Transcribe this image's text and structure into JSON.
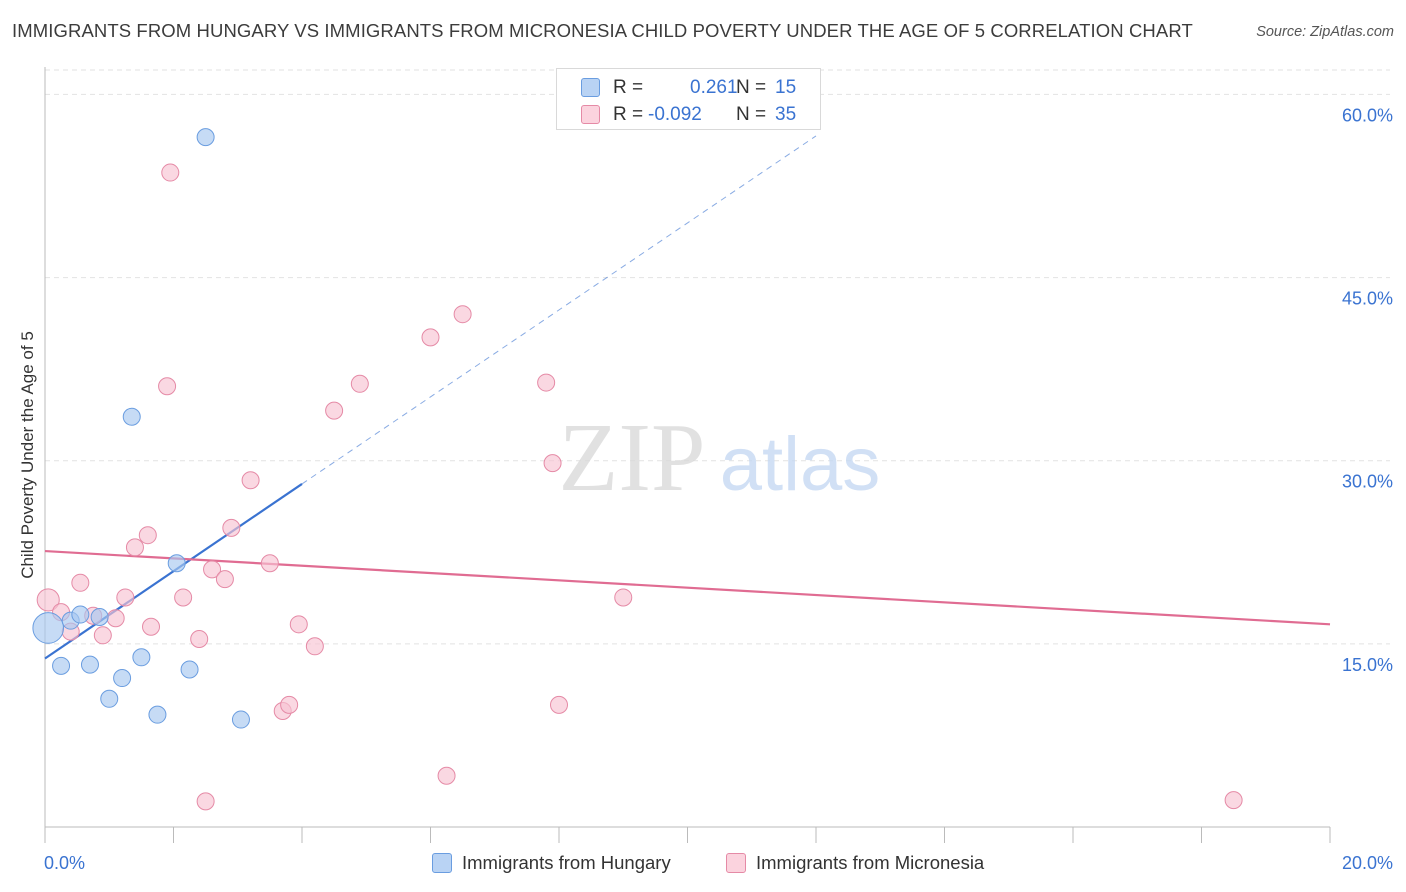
{
  "title": "IMMIGRANTS FROM HUNGARY VS IMMIGRANTS FROM MICRONESIA CHILD POVERTY UNDER THE AGE OF 5 CORRELATION CHART",
  "source": "Source: ZipAtlas.com",
  "watermark": {
    "zip": "ZIP",
    "atlas": "atlas"
  },
  "legend": {
    "rows": [
      {
        "r_label": "R =",
        "r_value": "0.261",
        "n_label": "N =",
        "n_value": "15",
        "color": "#a8c8f0",
        "border": "#6a9de0"
      },
      {
        "r_label": "R =",
        "r_value": "-0.092",
        "n_label": "N =",
        "n_value": "35",
        "color": "#f7c3d2",
        "border": "#e58aa6"
      }
    ]
  },
  "chart_data": {
    "type": "scatter",
    "title": "IMMIGRANTS FROM HUNGARY VS IMMIGRANTS FROM MICRONESIA CHILD POVERTY UNDER THE AGE OF 5 CORRELATION CHART",
    "xlabel": "",
    "ylabel": "Child Poverty Under the Age of 5",
    "xlim": [
      0,
      20
    ],
    "ylim": [
      0,
      62
    ],
    "x_tick_labels": [
      "0.0%",
      "20.0%"
    ],
    "y_ticks": [
      15,
      30,
      45,
      60
    ],
    "y_tick_labels": [
      "15.0%",
      "30.0%",
      "45.0%",
      "60.0%"
    ],
    "grid": true,
    "legend_position": "top-center",
    "series": [
      {
        "name": "Immigrants from Hungary",
        "color": "#a8c8f0",
        "edge": "#6a9de0",
        "line_color": "#3a73d1",
        "points": [
          [
            0.05,
            16.3,
            1.8
          ],
          [
            0.25,
            13.2,
            1
          ],
          [
            0.4,
            16.9,
            1
          ],
          [
            0.55,
            17.4,
            1
          ],
          [
            0.7,
            13.3,
            1
          ],
          [
            0.85,
            17.2,
            1
          ],
          [
            1.0,
            10.5,
            1
          ],
          [
            1.2,
            12.2,
            1
          ],
          [
            1.35,
            33.6,
            1
          ],
          [
            1.5,
            13.9,
            1
          ],
          [
            1.75,
            9.2,
            1
          ],
          [
            2.05,
            21.6,
            1
          ],
          [
            2.25,
            12.9,
            1
          ],
          [
            2.5,
            56.5,
            1
          ],
          [
            3.05,
            8.8,
            1
          ]
        ],
        "trend": {
          "x0": 0.0,
          "y0": 13.8,
          "x1": 4.0,
          "y1": 28.1,
          "ext_x1": 12.0,
          "ext_y1": 56.6
        }
      },
      {
        "name": "Immigrants from Micronesia",
        "color": "#f7c3d2",
        "edge": "#e58aa6",
        "line_color": "#e06c92",
        "points": [
          [
            0.05,
            18.6,
            1.3
          ],
          [
            0.25,
            17.6,
            1
          ],
          [
            0.4,
            16.0,
            1
          ],
          [
            0.55,
            20.0,
            1
          ],
          [
            0.75,
            17.3,
            1
          ],
          [
            0.9,
            15.7,
            1
          ],
          [
            1.1,
            17.1,
            1
          ],
          [
            1.25,
            18.8,
            1
          ],
          [
            1.4,
            22.9,
            1
          ],
          [
            1.6,
            23.9,
            1
          ],
          [
            1.65,
            16.4,
            1
          ],
          [
            1.9,
            36.1,
            1
          ],
          [
            1.95,
            53.6,
            1
          ],
          [
            2.15,
            18.8,
            1
          ],
          [
            2.4,
            15.4,
            1
          ],
          [
            2.5,
            2.1,
            1
          ],
          [
            2.6,
            21.1,
            1
          ],
          [
            2.8,
            20.3,
            1
          ],
          [
            2.9,
            24.5,
            1
          ],
          [
            3.2,
            28.4,
            1
          ],
          [
            3.5,
            21.6,
            1
          ],
          [
            3.7,
            9.5,
            1
          ],
          [
            3.8,
            10.0,
            1
          ],
          [
            3.95,
            16.6,
            1
          ],
          [
            4.2,
            14.8,
            1
          ],
          [
            4.5,
            34.1,
            1
          ],
          [
            4.9,
            36.3,
            1
          ],
          [
            6.0,
            40.1,
            1
          ],
          [
            6.25,
            4.2,
            1
          ],
          [
            6.5,
            42.0,
            1
          ],
          [
            7.8,
            36.4,
            1
          ],
          [
            7.9,
            29.8,
            1
          ],
          [
            8.0,
            10.0,
            1
          ],
          [
            9.0,
            18.8,
            1
          ],
          [
            18.5,
            2.2,
            1
          ]
        ],
        "trend": {
          "x0": 0.0,
          "y0": 22.6,
          "x1": 20.0,
          "y1": 16.6
        }
      }
    ]
  }
}
